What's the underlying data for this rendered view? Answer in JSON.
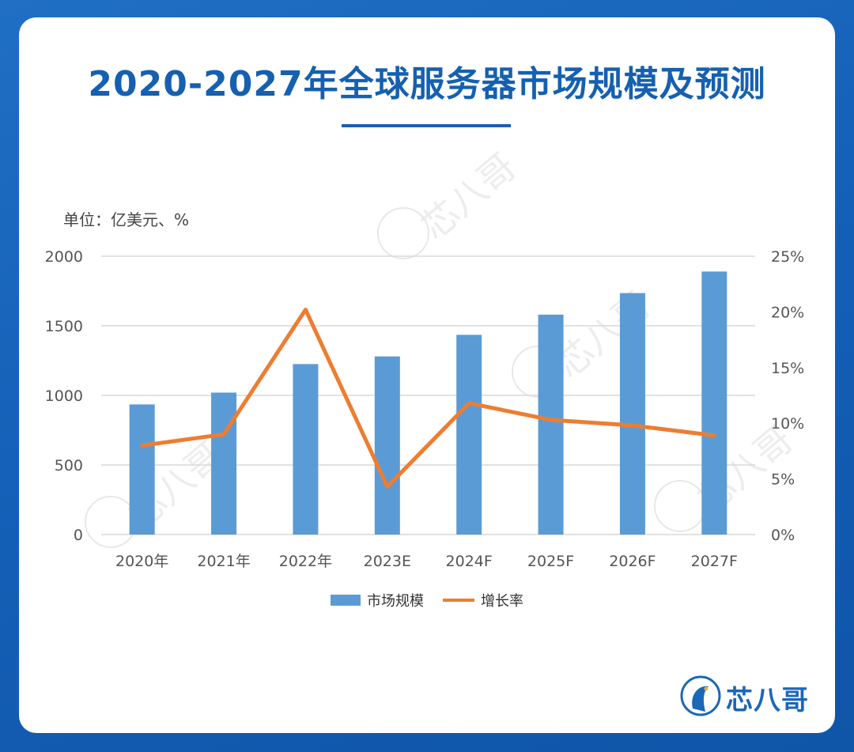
{
  "header": {
    "title": "2020-2027年全球服务器市场规模及预测",
    "unit_label": "单位：亿美元、%"
  },
  "brand": {
    "logo_text": "芯八哥",
    "watermark_text": "芯八哥"
  },
  "colors": {
    "bar": "#5b9bd5",
    "line": "#ed7d31",
    "title": "#1560b0",
    "background": "#1560b8"
  },
  "chart_data": {
    "type": "bar",
    "categories": [
      "2020年",
      "2021年",
      "2022年",
      "2023E",
      "2024F",
      "2025F",
      "2026F",
      "2027F"
    ],
    "series": [
      {
        "name": "市场规模",
        "type": "bar",
        "axis": "left",
        "values": [
          935,
          1020,
          1225,
          1280,
          1435,
          1580,
          1735,
          1890
        ]
      },
      {
        "name": "增长率",
        "type": "line",
        "axis": "right",
        "values": [
          8.0,
          9.0,
          20.2,
          4.3,
          11.8,
          10.3,
          9.8,
          8.9
        ]
      }
    ],
    "y_left": {
      "min": 0,
      "max": 2000,
      "ticks": [
        0,
        500,
        1000,
        1500,
        2000
      ]
    },
    "y_right": {
      "min": 0,
      "max": 25,
      "ticks": [
        "0%",
        "5%",
        "10%",
        "15%",
        "20%",
        "25%"
      ]
    },
    "grid": "horizontal",
    "legend": "bottom"
  }
}
